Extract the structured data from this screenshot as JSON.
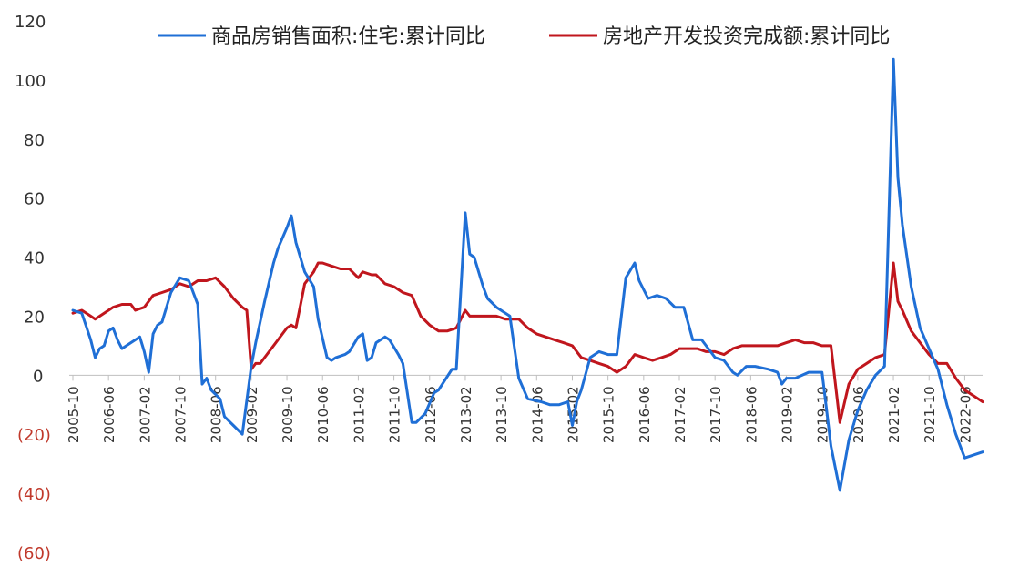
{
  "chart_data": {
    "type": "line",
    "title": "",
    "xlabel": "",
    "ylabel": "",
    "ylim": [
      -60,
      120
    ],
    "y_ticks": [
      {
        "value": 120,
        "label": "120"
      },
      {
        "value": 100,
        "label": "100"
      },
      {
        "value": 80,
        "label": "80"
      },
      {
        "value": 60,
        "label": "60"
      },
      {
        "value": 40,
        "label": "40"
      },
      {
        "value": 20,
        "label": "20"
      },
      {
        "value": 0,
        "label": "0"
      },
      {
        "value": -20,
        "label": "(20)"
      },
      {
        "value": -40,
        "label": "(40)"
      },
      {
        "value": -60,
        "label": "(60)"
      }
    ],
    "negative_label_color": "#c0392b",
    "positive_label_color": "#333333",
    "x_range": [
      "2005-10",
      "2022-10"
    ],
    "x_ticks": [
      "2005-10",
      "2006-06",
      "2007-02",
      "2007-10",
      "2008-06",
      "2009-02",
      "2009-10",
      "2010-06",
      "2011-02",
      "2011-10",
      "2012-06",
      "2013-02",
      "2013-10",
      "2014-06",
      "2015-02",
      "2015-10",
      "2016-06",
      "2017-02",
      "2017-10",
      "2018-06",
      "2019-02",
      "2019-10",
      "2020-06",
      "2021-02",
      "2021-10",
      "2022-06"
    ],
    "legend_position": "top",
    "series": [
      {
        "name": "商品房销售面积:住宅:累计同比",
        "color": "#1f6fd6",
        "points": [
          [
            "2005-10",
            22
          ],
          [
            "2005-12",
            21
          ],
          [
            "2006-02",
            12
          ],
          [
            "2006-03",
            6
          ],
          [
            "2006-04",
            9
          ],
          [
            "2006-05",
            10
          ],
          [
            "2006-06",
            15
          ],
          [
            "2006-07",
            16
          ],
          [
            "2006-08",
            12
          ],
          [
            "2006-09",
            9
          ],
          [
            "2006-11",
            11
          ],
          [
            "2007-01",
            13
          ],
          [
            "2007-02",
            8
          ],
          [
            "2007-03",
            1
          ],
          [
            "2007-04",
            14
          ],
          [
            "2007-05",
            17
          ],
          [
            "2007-06",
            18
          ],
          [
            "2007-08",
            28
          ],
          [
            "2007-10",
            33
          ],
          [
            "2007-12",
            32
          ],
          [
            "2008-02",
            24
          ],
          [
            "2008-03",
            -3
          ],
          [
            "2008-04",
            -1
          ],
          [
            "2008-05",
            -5
          ],
          [
            "2008-07",
            -8
          ],
          [
            "2008-08",
            -14
          ],
          [
            "2008-10",
            -17
          ],
          [
            "2008-12",
            -20
          ],
          [
            "2009-02",
            3
          ],
          [
            "2009-03",
            11
          ],
          [
            "2009-05",
            25
          ],
          [
            "2009-07",
            38
          ],
          [
            "2009-08",
            43
          ],
          [
            "2009-10",
            50
          ],
          [
            "2009-11",
            54
          ],
          [
            "2009-12",
            45
          ],
          [
            "2010-02",
            35
          ],
          [
            "2010-04",
            30
          ],
          [
            "2010-05",
            19
          ],
          [
            "2010-07",
            6
          ],
          [
            "2010-08",
            5
          ],
          [
            "2010-09",
            6
          ],
          [
            "2010-11",
            7
          ],
          [
            "2010-12",
            8
          ],
          [
            "2011-02",
            13
          ],
          [
            "2011-03",
            14
          ],
          [
            "2011-04",
            5
          ],
          [
            "2011-05",
            6
          ],
          [
            "2011-06",
            11
          ],
          [
            "2011-08",
            13
          ],
          [
            "2011-09",
            12
          ],
          [
            "2011-11",
            7
          ],
          [
            "2011-12",
            4
          ],
          [
            "2012-02",
            -16
          ],
          [
            "2012-03",
            -16
          ],
          [
            "2012-05",
            -13
          ],
          [
            "2012-07",
            -6
          ],
          [
            "2012-08",
            -5
          ],
          [
            "2012-11",
            2
          ],
          [
            "2012-12",
            2
          ],
          [
            "2013-02",
            55
          ],
          [
            "2013-03",
            41
          ],
          [
            "2013-04",
            40
          ],
          [
            "2013-06",
            30
          ],
          [
            "2013-07",
            26
          ],
          [
            "2013-09",
            23
          ],
          [
            "2013-12",
            20
          ],
          [
            "2014-02",
            -1
          ],
          [
            "2014-04",
            -8
          ],
          [
            "2014-07",
            -9
          ],
          [
            "2014-09",
            -10
          ],
          [
            "2014-11",
            -10
          ],
          [
            "2015-01",
            -9
          ],
          [
            "2015-02",
            -17
          ],
          [
            "2015-03",
            -9
          ],
          [
            "2015-04",
            -5
          ],
          [
            "2015-06",
            6
          ],
          [
            "2015-07",
            7
          ],
          [
            "2015-08",
            8
          ],
          [
            "2015-10",
            7
          ],
          [
            "2015-12",
            7
          ],
          [
            "2016-02",
            33
          ],
          [
            "2016-04",
            38
          ],
          [
            "2016-05",
            32
          ],
          [
            "2016-07",
            26
          ],
          [
            "2016-09",
            27
          ],
          [
            "2016-11",
            26
          ],
          [
            "2017-01",
            23
          ],
          [
            "2017-03",
            23
          ],
          [
            "2017-05",
            12
          ],
          [
            "2017-07",
            12
          ],
          [
            "2017-08",
            10
          ],
          [
            "2017-10",
            6
          ],
          [
            "2017-12",
            5
          ],
          [
            "2018-02",
            1
          ],
          [
            "2018-03",
            0
          ],
          [
            "2018-05",
            3
          ],
          [
            "2018-07",
            3
          ],
          [
            "2018-10",
            2
          ],
          [
            "2018-12",
            1
          ],
          [
            "2019-01",
            -3
          ],
          [
            "2019-02",
            -1
          ],
          [
            "2019-04",
            -1
          ],
          [
            "2019-07",
            1
          ],
          [
            "2019-09",
            1
          ],
          [
            "2019-10",
            1
          ],
          [
            "2019-12",
            -24
          ],
          [
            "2020-02",
            -39
          ],
          [
            "2020-04",
            -22
          ],
          [
            "2020-06",
            -12
          ],
          [
            "2020-08",
            -5
          ],
          [
            "2020-10",
            0
          ],
          [
            "2020-12",
            3
          ],
          [
            "2021-02",
            107
          ],
          [
            "2021-03",
            67
          ],
          [
            "2021-04",
            51
          ],
          [
            "2021-06",
            30
          ],
          [
            "2021-08",
            16
          ],
          [
            "2021-10",
            9
          ],
          [
            "2021-12",
            2
          ],
          [
            "2022-02",
            -10
          ],
          [
            "2022-04",
            -20
          ],
          [
            "2022-06",
            -28
          ],
          [
            "2022-08",
            -27
          ],
          [
            "2022-10",
            -26
          ]
        ]
      },
      {
        "name": "房地产开发投资完成额:累计同比",
        "color": "#c0161d",
        "points": [
          [
            "2005-10",
            21
          ],
          [
            "2005-12",
            22
          ],
          [
            "2006-02",
            20
          ],
          [
            "2006-03",
            19
          ],
          [
            "2006-05",
            21
          ],
          [
            "2006-07",
            23
          ],
          [
            "2006-09",
            24
          ],
          [
            "2006-11",
            24
          ],
          [
            "2006-12",
            22
          ],
          [
            "2007-02",
            23
          ],
          [
            "2007-04",
            27
          ],
          [
            "2007-06",
            28
          ],
          [
            "2007-08",
            29
          ],
          [
            "2007-10",
            31
          ],
          [
            "2007-12",
            30
          ],
          [
            "2008-02",
            32
          ],
          [
            "2008-04",
            32
          ],
          [
            "2008-06",
            33
          ],
          [
            "2008-08",
            30
          ],
          [
            "2008-10",
            26
          ],
          [
            "2008-12",
            23
          ],
          [
            "2009-01",
            22
          ],
          [
            "2009-02",
            2
          ],
          [
            "2009-03",
            4
          ],
          [
            "2009-04",
            4
          ],
          [
            "2009-06",
            8
          ],
          [
            "2009-08",
            12
          ],
          [
            "2009-10",
            16
          ],
          [
            "2009-11",
            17
          ],
          [
            "2009-12",
            16
          ],
          [
            "2010-02",
            31
          ],
          [
            "2010-04",
            35
          ],
          [
            "2010-05",
            38
          ],
          [
            "2010-06",
            38
          ],
          [
            "2010-08",
            37
          ],
          [
            "2010-10",
            36
          ],
          [
            "2010-12",
            36
          ],
          [
            "2011-02",
            33
          ],
          [
            "2011-03",
            35
          ],
          [
            "2011-05",
            34
          ],
          [
            "2011-06",
            34
          ],
          [
            "2011-08",
            31
          ],
          [
            "2011-10",
            30
          ],
          [
            "2011-12",
            28
          ],
          [
            "2012-02",
            27
          ],
          [
            "2012-04",
            20
          ],
          [
            "2012-06",
            17
          ],
          [
            "2012-08",
            15
          ],
          [
            "2012-10",
            15
          ],
          [
            "2012-12",
            16
          ],
          [
            "2013-02",
            22
          ],
          [
            "2013-03",
            20
          ],
          [
            "2013-05",
            20
          ],
          [
            "2013-07",
            20
          ],
          [
            "2013-09",
            20
          ],
          [
            "2013-11",
            19
          ],
          [
            "2014-02",
            19
          ],
          [
            "2014-04",
            16
          ],
          [
            "2014-06",
            14
          ],
          [
            "2014-08",
            13
          ],
          [
            "2014-10",
            12
          ],
          [
            "2014-12",
            11
          ],
          [
            "2015-02",
            10
          ],
          [
            "2015-04",
            6
          ],
          [
            "2015-06",
            5
          ],
          [
            "2015-08",
            4
          ],
          [
            "2015-10",
            3
          ],
          [
            "2015-12",
            1
          ],
          [
            "2016-02",
            3
          ],
          [
            "2016-04",
            7
          ],
          [
            "2016-06",
            6
          ],
          [
            "2016-08",
            5
          ],
          [
            "2016-10",
            6
          ],
          [
            "2016-12",
            7
          ],
          [
            "2017-02",
            9
          ],
          [
            "2017-04",
            9
          ],
          [
            "2017-06",
            9
          ],
          [
            "2017-08",
            8
          ],
          [
            "2017-10",
            8
          ],
          [
            "2017-12",
            7
          ],
          [
            "2018-02",
            9
          ],
          [
            "2018-04",
            10
          ],
          [
            "2018-06",
            10
          ],
          [
            "2018-08",
            10
          ],
          [
            "2018-10",
            10
          ],
          [
            "2018-12",
            10
          ],
          [
            "2019-02",
            11
          ],
          [
            "2019-04",
            12
          ],
          [
            "2019-06",
            11
          ],
          [
            "2019-08",
            11
          ],
          [
            "2019-10",
            10
          ],
          [
            "2019-12",
            10
          ],
          [
            "2020-02",
            -16
          ],
          [
            "2020-04",
            -3
          ],
          [
            "2020-06",
            2
          ],
          [
            "2020-08",
            4
          ],
          [
            "2020-10",
            6
          ],
          [
            "2020-12",
            7
          ],
          [
            "2021-02",
            38
          ],
          [
            "2021-03",
            25
          ],
          [
            "2021-04",
            22
          ],
          [
            "2021-06",
            15
          ],
          [
            "2021-08",
            11
          ],
          [
            "2021-10",
            7
          ],
          [
            "2021-12",
            4
          ],
          [
            "2022-02",
            4
          ],
          [
            "2022-04",
            -1
          ],
          [
            "2022-06",
            -5
          ],
          [
            "2022-08",
            -7
          ],
          [
            "2022-10",
            -9
          ]
        ]
      }
    ]
  }
}
